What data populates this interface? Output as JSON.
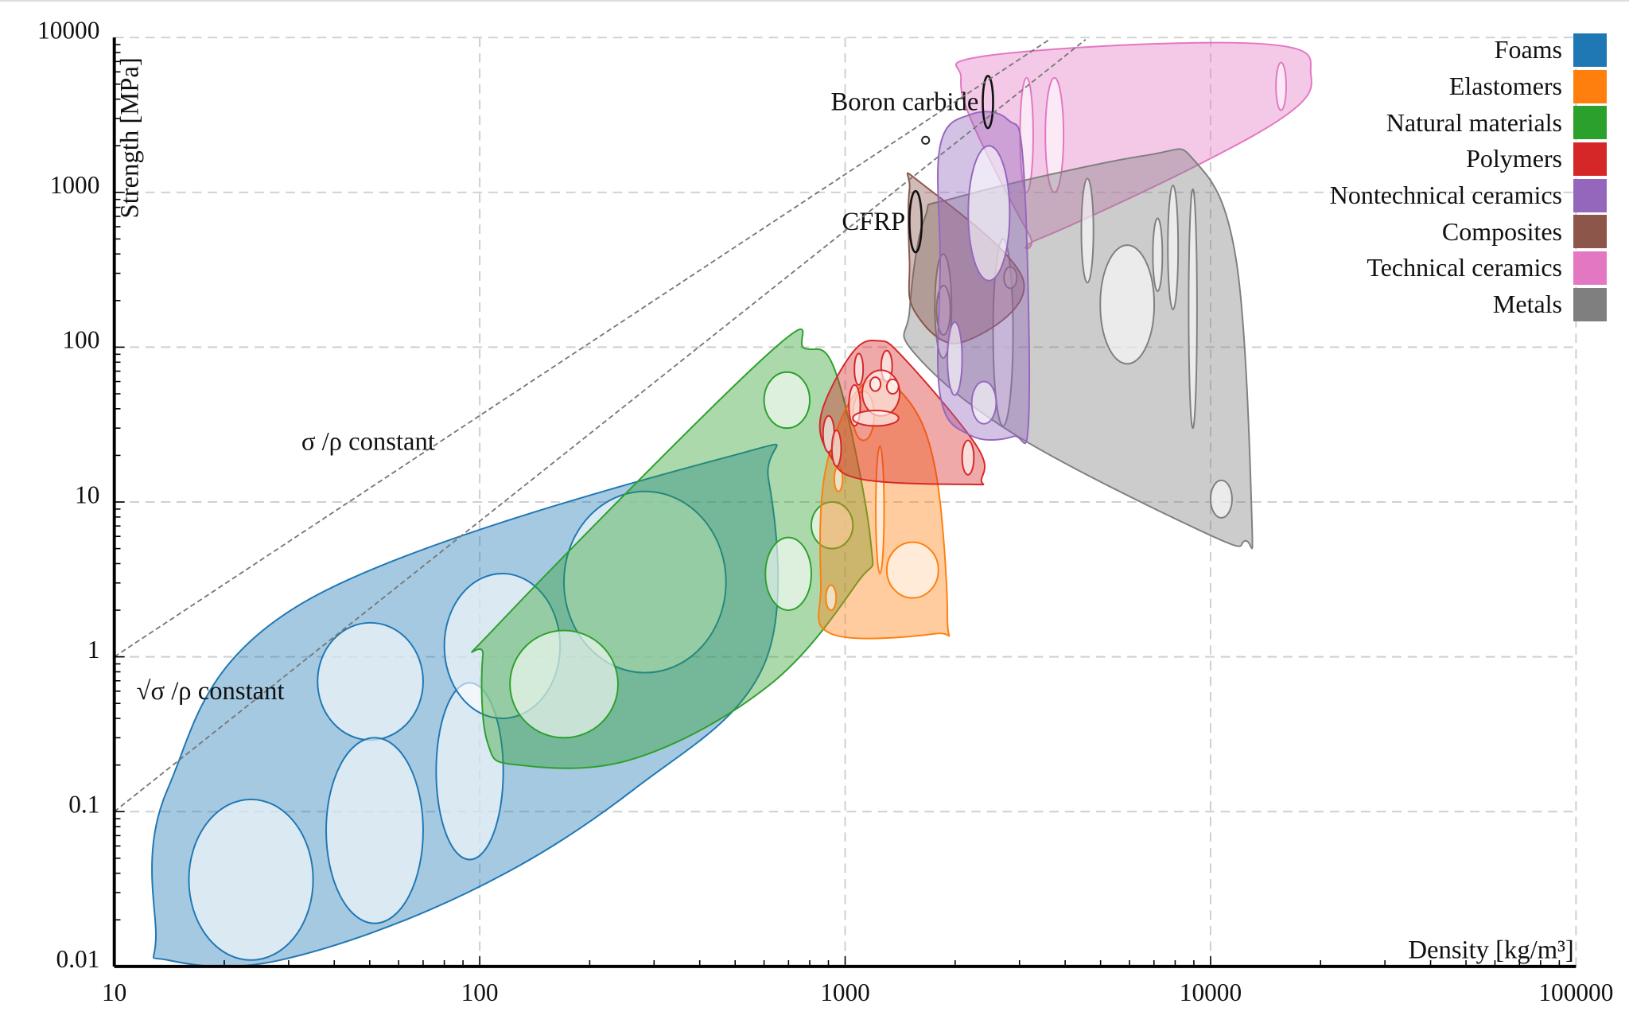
{
  "chart_data": {
    "type": "scatter",
    "title": "",
    "xlabel": "Density [kg/m³]",
    "ylabel": "Strength [MPa]",
    "xscale": "log",
    "yscale": "log",
    "xlim": [
      10,
      100000
    ],
    "ylim": [
      0.01,
      10000
    ],
    "x_ticks": [
      "10",
      "100",
      "1000",
      "10000",
      "100000"
    ],
    "y_ticks": [
      "0.01",
      "0.1",
      "1",
      "10",
      "100",
      "1000",
      "10000"
    ],
    "grid": true,
    "legend_position": "top-right",
    "series": [
      {
        "name": "Foams",
        "color": "#1f77b4",
        "envelope": [
          [
            13,
            0.016
          ],
          [
            14,
            0.14
          ],
          [
            32.5,
            2.2
          ],
          [
            475,
            19.5
          ],
          [
            617,
            14
          ],
          [
            600,
            0.89
          ],
          [
            265,
            0.14
          ],
          [
            92.6,
            0.03
          ],
          [
            28.5,
            0.011
          ],
          [
            14,
            0.011
          ]
        ],
        "materials": [
          [
            16,
            35,
            0.011,
            0.12
          ],
          [
            36,
            70,
            0.29,
            1.66
          ],
          [
            38,
            70,
            0.019,
            0.3
          ],
          [
            76,
            116,
            0.049,
            0.68
          ],
          [
            80,
            166,
            0.4,
            3.45
          ],
          [
            170,
            472,
            0.79,
            11.7
          ]
        ]
      },
      {
        "name": "Natural materials",
        "color": "#2ca02c",
        "envelope": [
          [
            102,
            1.02
          ],
          [
            113,
            1.64
          ],
          [
            617,
            91
          ],
          [
            776,
            98
          ],
          [
            946,
            67
          ],
          [
            1174,
            5.6
          ],
          [
            1078,
            3.0
          ],
          [
            617,
            0.65
          ],
          [
            265,
            0.22
          ],
          [
            128,
            0.2
          ],
          [
            105,
            0.28
          ]
        ],
        "materials": [
          [
            600,
            800,
            30,
            69
          ],
          [
            808,
            1050,
            5,
            10
          ],
          [
            605,
            808,
            2.0,
            5.9
          ],
          [
            121,
            239,
            0.3,
            1.48
          ]
        ]
      },
      {
        "name": "Elastomers",
        "color": "#ff7f0e",
        "envelope": [
          [
            886,
            16.6
          ],
          [
            1114,
            57
          ],
          [
            1448,
            49
          ],
          [
            1762,
            16.6
          ],
          [
            1905,
            1.78
          ],
          [
            1762,
            1.41
          ],
          [
            915,
            1.41
          ],
          [
            858,
            3.0
          ]
        ],
        "materials": [
          [
            1300,
            1800,
            2.4,
            5.5
          ],
          [
            1213,
            1278,
            3.45,
            23
          ],
          [
            934,
            984,
            11.7,
            17
          ],
          [
            886,
            945,
            2.0,
            2.9
          ],
          [
            1050,
            1200,
            25,
            52
          ]
        ]
      },
      {
        "name": "Polymers",
        "color": "#d62728",
        "envelope": [
          [
            858,
            36
          ],
          [
            1043,
            91
          ],
          [
            1230,
            110
          ],
          [
            1448,
            85
          ],
          [
            2290,
            23
          ],
          [
            2360,
            14
          ],
          [
            2200,
            13
          ],
          [
            1114,
            14
          ],
          [
            915,
            19.5
          ]
        ],
        "materials": [
          [
            2090,
            2250,
            15,
            25
          ],
          [
            870,
            934,
            21,
            36
          ],
          [
            920,
            975,
            17,
            29
          ],
          [
            1024,
            1100,
            31,
            57
          ],
          [
            1060,
            1120,
            57,
            91
          ],
          [
            1255,
            1345,
            60,
            95
          ],
          [
            1114,
            1410,
            36,
            71
          ],
          [
            1300,
            1400,
            50,
            62
          ],
          [
            1170,
            1250,
            52,
            64
          ],
          [
            1050,
            1400,
            31,
            39
          ]
        ]
      },
      {
        "name": "Technical ceramics",
        "color": "#e377c2",
        "envelope": [
          [
            2075,
            5500
          ],
          [
            2290,
            7450
          ],
          [
            6970,
            9100
          ],
          [
            16300,
            8700
          ],
          [
            18800,
            5900
          ],
          [
            16900,
            3440
          ],
          [
            9060,
            1470
          ],
          [
            3390,
            500
          ],
          [
            3180,
            540
          ],
          [
            2240,
            2740
          ]
        ],
        "materials": [
          [
            3010,
            3270,
            1000,
            5500
          ],
          [
            3530,
            3960,
            1000,
            5500
          ],
          [
            15100,
            16100,
            3390,
            6900
          ]
        ]
      },
      {
        "name": "Metals",
        "color": "#7f7f7f",
        "envelope": [
          [
            1500,
            170
          ],
          [
            1650,
            680
          ],
          [
            2010,
            925
          ],
          [
            6530,
            1720
          ],
          [
            9060,
            1590
          ],
          [
            11750,
            365
          ],
          [
            12970,
            7.7
          ],
          [
            12400,
            5.6
          ],
          [
            9980,
            6.1
          ],
          [
            2970,
            26.5
          ],
          [
            1550,
            91
          ]
        ],
        "materials": [
          [
            4990,
            7010,
            78,
            456
          ],
          [
            4430,
            4780,
            261,
            1230
          ],
          [
            6950,
            7380,
            230,
            680
          ],
          [
            7640,
            8150,
            175,
            1110
          ],
          [
            8710,
            9180,
            30,
            1050
          ],
          [
            10000,
            11450,
            7.9,
            13.8
          ],
          [
            2540,
            2880,
            31,
            500
          ],
          [
            1760,
            1955,
            85,
            400
          ],
          [
            1780,
            1940,
            120,
            250
          ],
          [
            2720,
            2950,
            240,
            330
          ]
        ]
      },
      {
        "name": "Composites",
        "color": "#8c564b",
        "envelope": [
          [
            1500,
            1050
          ],
          [
            1597,
            1170
          ],
          [
            3075,
            269
          ],
          [
            2075,
            107
          ],
          [
            1550,
            170
          ],
          [
            1500,
            365
          ]
        ],
        "materials": []
      },
      {
        "name": "Nontechnical ceramics",
        "color": "#9467bd",
        "envelope": [
          [
            1820,
            2000
          ],
          [
            2200,
            3180
          ],
          [
            2786,
            2950
          ],
          [
            3075,
            1470
          ],
          [
            3180,
            36
          ],
          [
            2880,
            26.5
          ],
          [
            2200,
            27
          ],
          [
            1820,
            49
          ],
          [
            1820,
            365
          ]
        ],
        "materials": [
          [
            2172,
            2820,
            269,
            2000
          ],
          [
            1905,
            2090,
            49,
            145
          ],
          [
            2220,
            2590,
            32,
            60
          ]
        ]
      }
    ],
    "legend_order": [
      "Foams",
      "Elastomers",
      "Natural materials",
      "Polymers",
      "Nontechnical ceramics",
      "Composites",
      "Technical ceramics",
      "Metals"
    ],
    "highlighted": [
      {
        "label": "Boron carbide",
        "range": [
          2380,
          2540,
          2600,
          5650
        ]
      },
      {
        "label": "CFRP",
        "range": [
          1500,
          1620,
          410,
          1020
        ]
      }
    ],
    "guide_lines": [
      {
        "label": "σ /ρ constant",
        "from": [
          10,
          1
        ],
        "to": [
          3620,
          9700
        ],
        "label_at": [
          32.5,
          24.5
        ]
      },
      {
        "label": "√σ /ρ constant",
        "from": [
          10,
          0.1
        ],
        "to": [
          4550,
          9700
        ],
        "label_at": [
          11.5,
          0.6
        ]
      }
    ],
    "guide_point": [
      1660,
      2170
    ]
  }
}
